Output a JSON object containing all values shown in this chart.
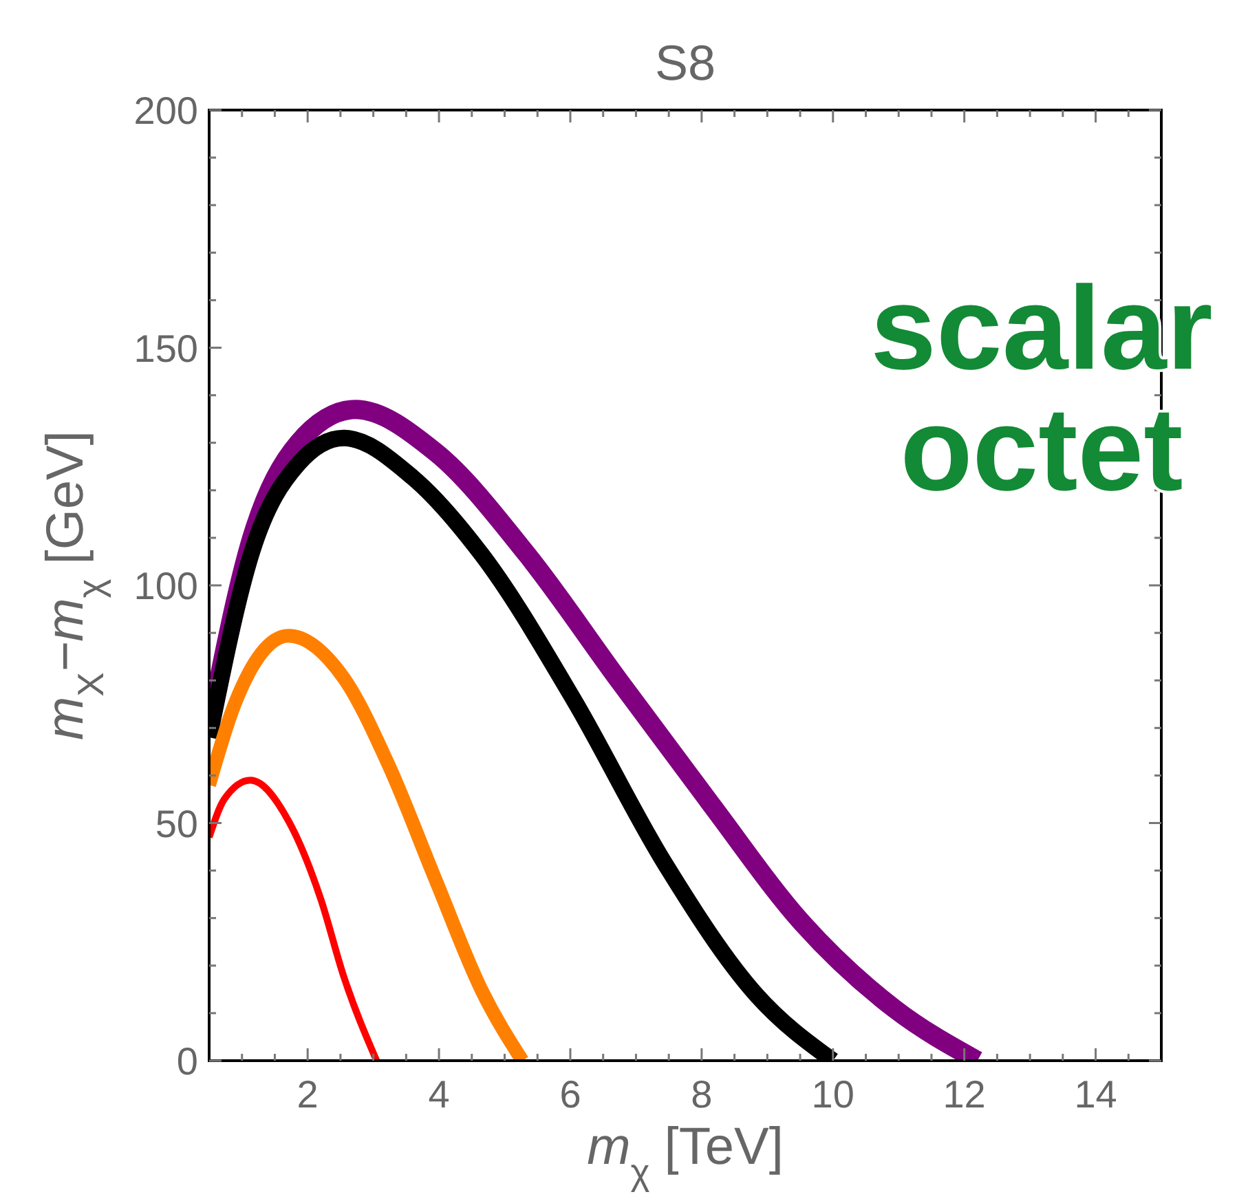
{
  "chart_data": {
    "type": "line",
    "title": "S8",
    "xlabel": "m$_{χ}$ [TeV]",
    "ylabel": "m$_{X}$−m$_{χ}$ [GeV]",
    "xlim": [
      0.5,
      15
    ],
    "ylim": [
      0,
      200
    ],
    "xticks": [
      {
        "value": 1,
        "label": null
      },
      {
        "value": 1.5,
        "label": null
      },
      2,
      {
        "value": 2.5,
        "label": null
      },
      {
        "value": 3,
        "label": null
      },
      {
        "value": 3.5,
        "label": null
      },
      4,
      {
        "value": 4.5,
        "label": null
      },
      {
        "value": 5,
        "label": null
      },
      {
        "value": 5.5,
        "label": null
      },
      6,
      {
        "value": 6.5,
        "label": null
      },
      {
        "value": 7,
        "label": null
      },
      {
        "value": 7.5,
        "label": null
      },
      8,
      {
        "value": 8.5,
        "label": null
      },
      {
        "value": 9,
        "label": null
      },
      {
        "value": 9.5,
        "label": null
      },
      10,
      {
        "value": 10.5,
        "label": null
      },
      {
        "value": 11,
        "label": null
      },
      {
        "value": 11.5,
        "label": null
      },
      12,
      {
        "value": 12.5,
        "label": null
      },
      {
        "value": 13,
        "label": null
      },
      {
        "value": 13.5,
        "label": null
      },
      14,
      {
        "value": 14.5,
        "label": null
      }
    ],
    "yticks": [
      0,
      {
        "value": 10,
        "label": null
      },
      {
        "value": 20,
        "label": null
      },
      {
        "value": 30,
        "label": null
      },
      {
        "value": 40,
        "label": null
      },
      50,
      {
        "value": 60,
        "label": null
      },
      {
        "value": 70,
        "label": null
      },
      {
        "value": 80,
        "label": null
      },
      {
        "value": 90,
        "label": null
      },
      100,
      {
        "value": 110,
        "label": null
      },
      {
        "value": 120,
        "label": null
      },
      {
        "value": 130,
        "label": null
      },
      {
        "value": 140,
        "label": null
      },
      150,
      {
        "value": 160,
        "label": null
      },
      {
        "value": 170,
        "label": null
      },
      {
        "value": 180,
        "label": null
      },
      {
        "value": 190,
        "label": null
      },
      200
    ],
    "marker": "none",
    "line_style": "solid",
    "series": [
      {
        "color": "#800080",
        "x": [
          0.5,
          1.15,
          1.86,
          2.72,
          3.95,
          5.34,
          6.74,
          8.14,
          9.53,
          10.93,
          12.2
        ],
        "values": [
          70,
          110,
          130,
          137,
          128,
          106.5,
          80,
          54,
          29,
          11,
          0
        ]
      },
      {
        "color": "#000000",
        "x": [
          0.5,
          1.15,
          1.86,
          2.55,
          3.6,
          4.65,
          6.05,
          7.43,
          8.83,
          10
        ],
        "values": [
          68,
          107,
          125.6,
          131,
          122.7,
          106.5,
          76,
          41.7,
          13.9,
          0
        ]
      },
      {
        "color": "#ff8000",
        "x": [
          0.5,
          0.88,
          1.71,
          2.55,
          3.24,
          3.95,
          4.65,
          5.27
        ],
        "values": [
          58,
          74.7,
          89.4,
          80.5,
          62,
          38,
          14.8,
          0
        ]
      },
      {
        "color": "#ff0000",
        "x": [
          0.5,
          0.73,
          1.13,
          1.71,
          2.2,
          2.55,
          3.05
        ],
        "values": [
          47,
          55,
          59,
          50.4,
          34,
          17.7,
          0
        ]
      }
    ],
    "annotations": [
      "scalar",
      "octet"
    ]
  }
}
